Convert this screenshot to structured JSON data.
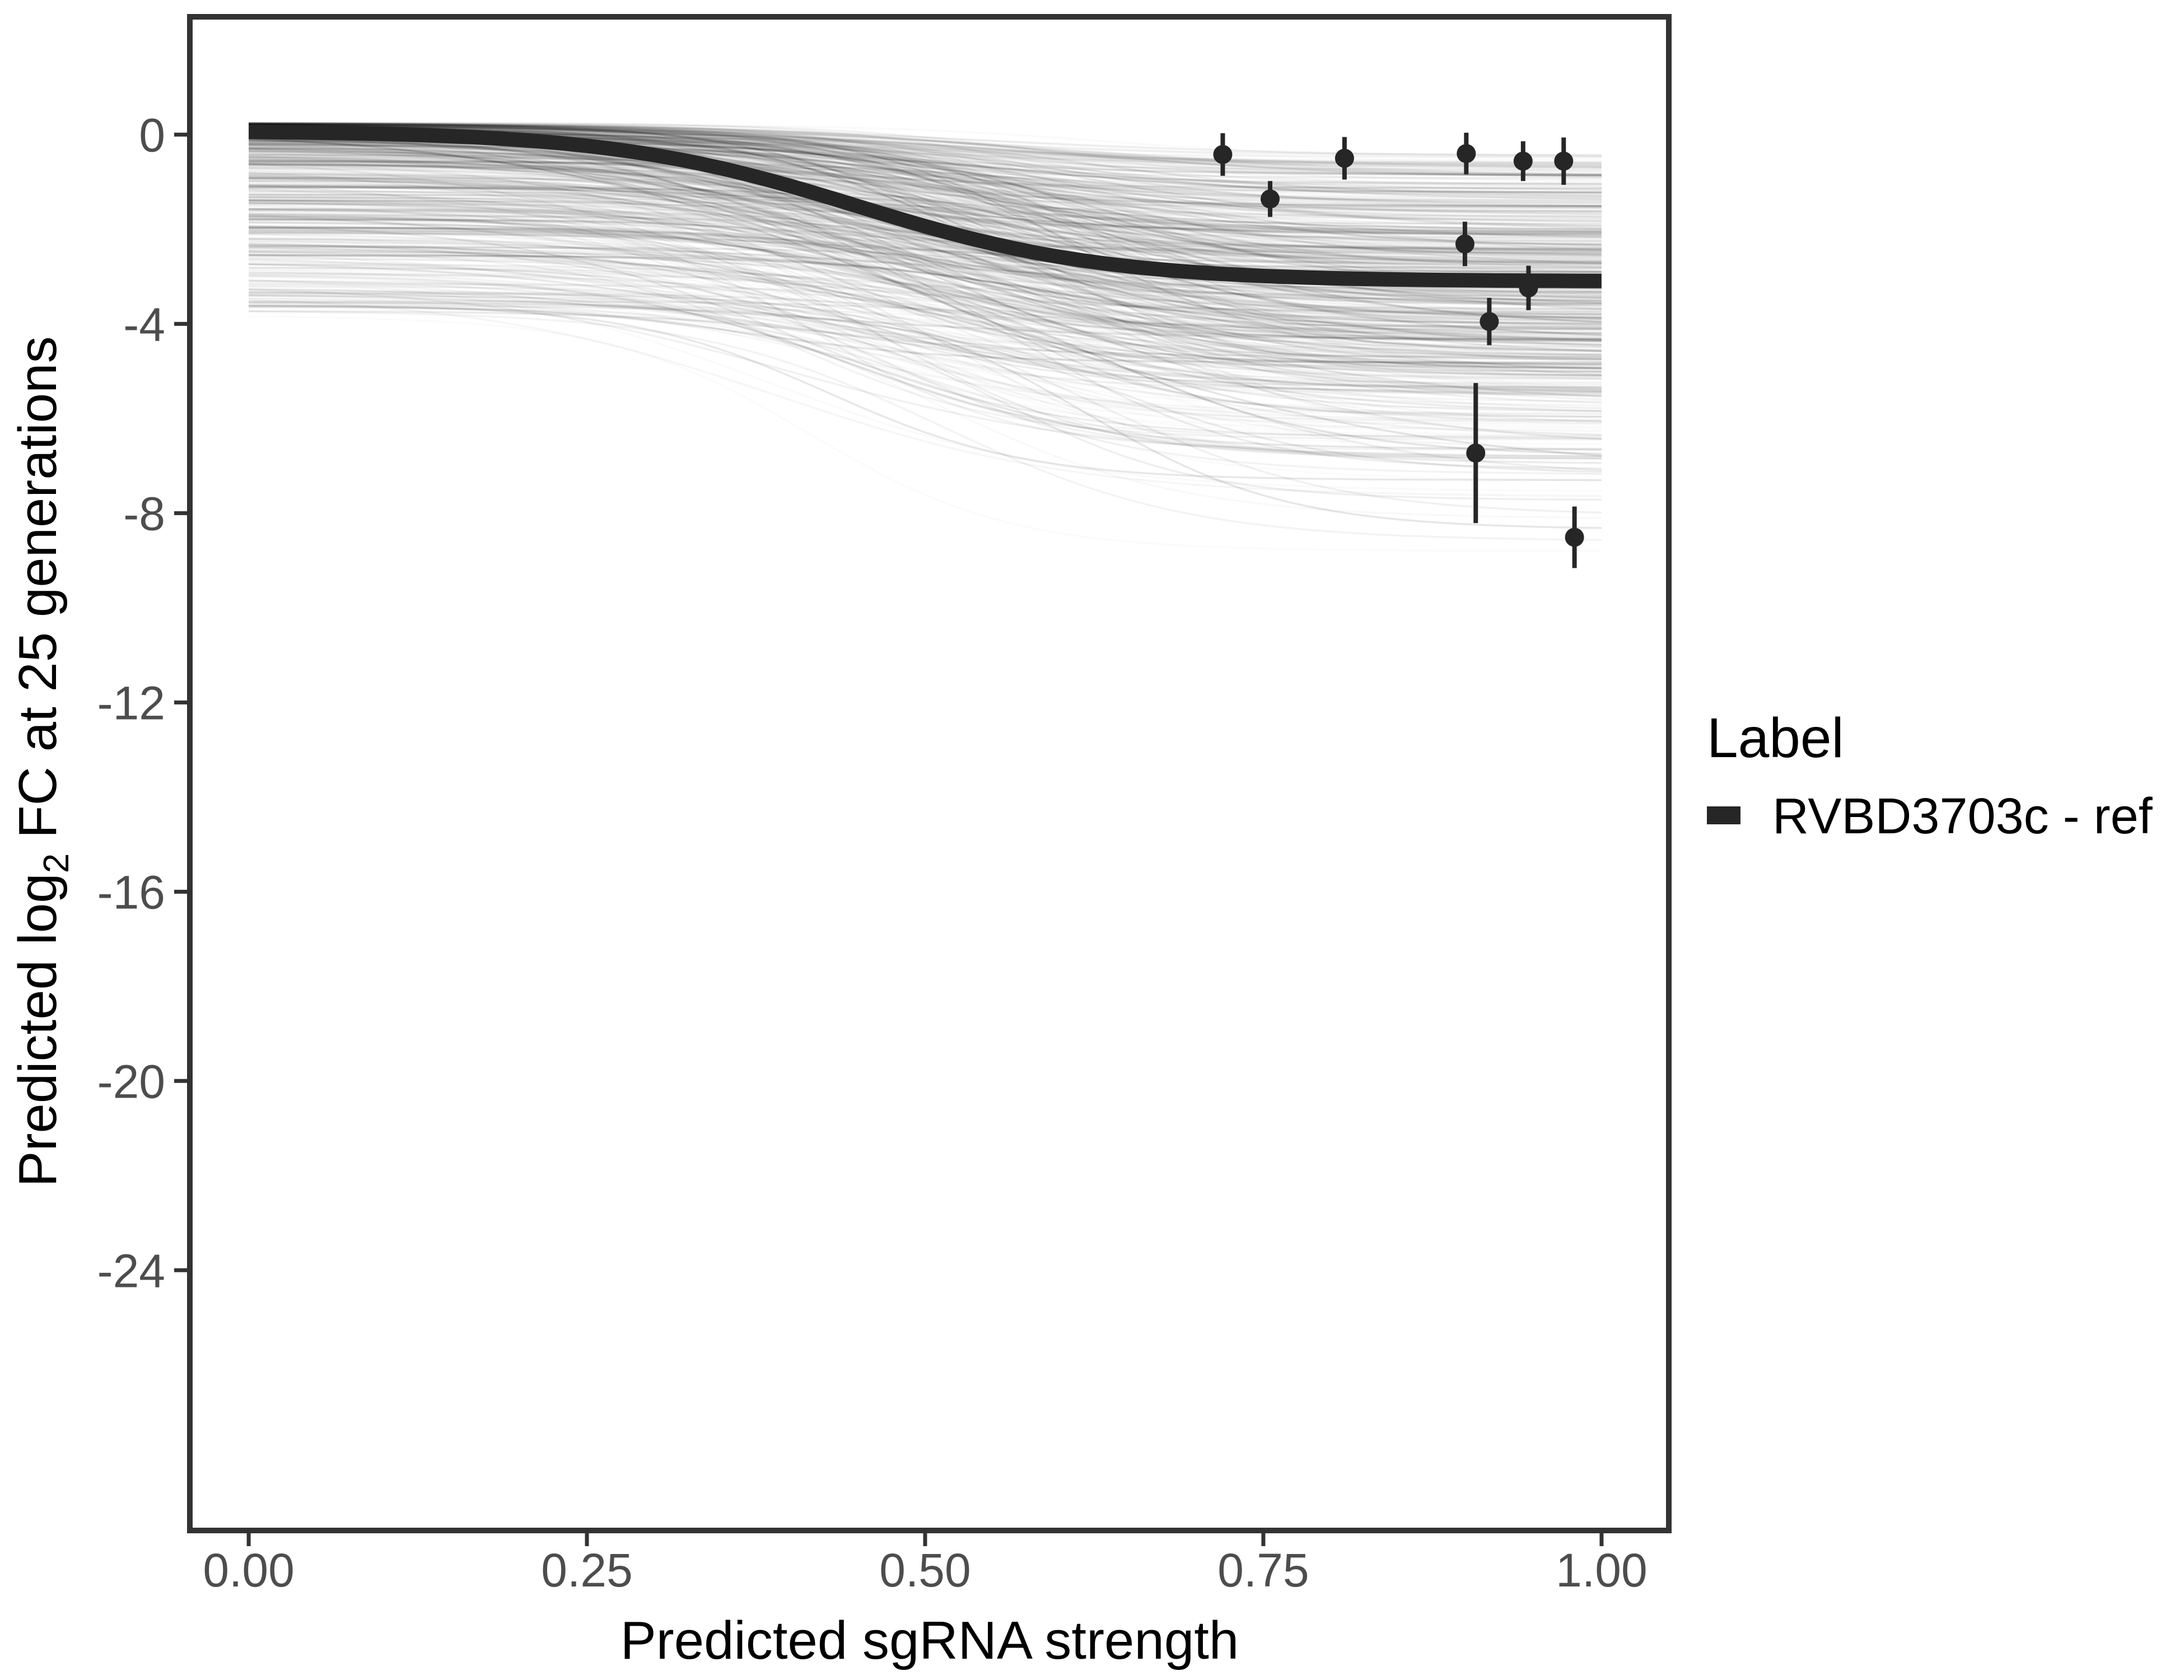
{
  "figure": {
    "background": "#ffffff",
    "x_axis_title": "Predicted sgRNA strength",
    "y_axis_title_pre": "Predicted log",
    "y_axis_title_sub": "2",
    "y_axis_title_post": " FC at 25 generations"
  },
  "legend": {
    "title": "Label",
    "entries": [
      {
        "label": "RVBD3703c - ref",
        "swatch_color": "#262626"
      }
    ]
  },
  "axis_style": {
    "tick_label_color": "#4d4d4d",
    "axis_color": "#333333",
    "title_color": "#000000",
    "tick_length": 28,
    "tick_width": 7,
    "border_width": 10
  },
  "chart_data": {
    "type": "line",
    "title": "",
    "xlabel": "Predicted sgRNA strength",
    "ylabel": "Predicted log2 FC at 25 generations",
    "grid": false,
    "legend_position": "right",
    "x_range": [
      -0.0435,
      1.0497
    ],
    "y_range": [
      -29.5,
      2.49
    ],
    "x_ticks": {
      "values": [
        0,
        0.25,
        0.5,
        0.75,
        1
      ],
      "labels": [
        "0.00",
        "0.25",
        "0.50",
        "0.75",
        "1.00"
      ]
    },
    "y_ticks": {
      "values": [
        0,
        -4,
        -8,
        -12,
        -16,
        -20,
        -24
      ],
      "labels": [
        "0",
        "-4",
        "-8",
        "-12",
        "-16",
        "-20",
        "-24"
      ]
    },
    "reference_curve": {
      "label": "RVBD3703c - ref",
      "shape": "sigmoid",
      "top": 0.08,
      "bottom": -3.1,
      "midpoint": 0.45,
      "steepness": 11,
      "color": "#262626",
      "stroke_width": 26
    },
    "posterior_ensemble": {
      "count": 550,
      "color": "#000000",
      "opacity_range": [
        0.015,
        0.1
      ],
      "stroke_width": 3.5,
      "top_start": 0.25,
      "top_spread": 4.1,
      "top_power": 2.4,
      "drop_base": 0.4,
      "drop_scale": 4.8,
      "drop_power": 1.6,
      "midpoint_range": [
        0.37,
        0.64
      ],
      "steepness_range": [
        7,
        14
      ],
      "outlier_prob": 0.025,
      "outlier_extra_drop": 2.2,
      "min_bottom": -8.8,
      "seed": 20240917
    },
    "points": [
      {
        "x": 0.72,
        "y": -0.42,
        "err": 0.45
      },
      {
        "x": 0.81,
        "y": -0.5,
        "err": 0.45
      },
      {
        "x": 0.755,
        "y": -1.36,
        "err": 0.38
      },
      {
        "x": 0.9,
        "y": -0.4,
        "err": 0.44
      },
      {
        "x": 0.899,
        "y": -2.31,
        "err": 0.47
      },
      {
        "x": 0.942,
        "y": -0.56,
        "err": 0.42
      },
      {
        "x": 0.972,
        "y": -0.56,
        "err": 0.5
      },
      {
        "x": 0.946,
        "y": -3.24,
        "err": 0.47
      },
      {
        "x": 0.917,
        "y": -3.95,
        "err": 0.5
      },
      {
        "x": 0.907,
        "y": -6.73,
        "err": 1.48
      },
      {
        "x": 0.98,
        "y": -8.51,
        "err": 0.65
      }
    ],
    "point_style": {
      "color": "#262626",
      "radius": 17,
      "errorbar_width": 8
    }
  }
}
